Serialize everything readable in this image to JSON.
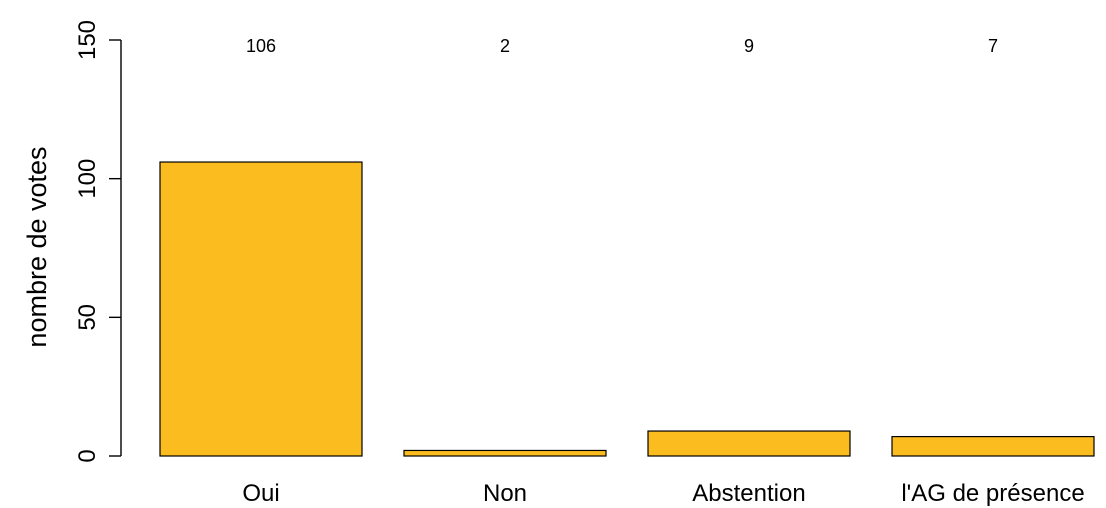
{
  "chart_data": {
    "type": "bar",
    "categories": [
      "Oui",
      "Non",
      "Abstention",
      "l'AG de présence"
    ],
    "values": [
      106,
      2,
      9,
      7
    ],
    "value_labels": [
      "106",
      "2",
      "9",
      "7"
    ],
    "title": "",
    "xlabel": "",
    "ylabel": "nombre de votes",
    "ylim": [
      0,
      150
    ],
    "yticks": [
      0,
      50,
      100,
      150
    ],
    "ytick_labels": [
      "0",
      "50",
      "100",
      "150"
    ],
    "bar_color": "#FBBC1F",
    "edge_color": "#000000",
    "grid": false,
    "legend": "none"
  }
}
